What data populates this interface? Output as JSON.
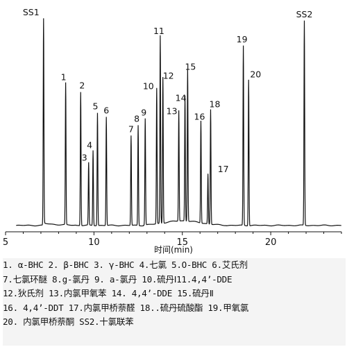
{
  "chart_data": {
    "type": "line",
    "title": "",
    "xlabel": "时间(min)",
    "ylabel": "",
    "xlim": [
      5,
      24
    ],
    "ylim": [
      0,
      100
    ],
    "xticks": [
      5,
      10,
      15,
      20
    ],
    "grid": false,
    "series": [
      {
        "peaks": [
          {
            "label": "SS1",
            "x": 7.15,
            "y": 99
          },
          {
            "label": "1",
            "x": 8.4,
            "y": 68
          },
          {
            "label": "2",
            "x": 9.25,
            "y": 64
          },
          {
            "label": "3",
            "x": 9.7,
            "y": 30
          },
          {
            "label": "4",
            "x": 9.95,
            "y": 36
          },
          {
            "label": "5",
            "x": 10.2,
            "y": 54
          },
          {
            "label": "6",
            "x": 10.7,
            "y": 52
          },
          {
            "label": "7",
            "x": 12.1,
            "y": 43
          },
          {
            "label": "8",
            "x": 12.5,
            "y": 48
          },
          {
            "label": "9",
            "x": 12.9,
            "y": 51
          },
          {
            "label": "10",
            "x": 13.55,
            "y": 65
          },
          {
            "label": "11",
            "x": 13.75,
            "y": 90
          },
          {
            "label": "12",
            "x": 13.9,
            "y": 70
          },
          {
            "label": "13",
            "x": 14.8,
            "y": 53
          },
          {
            "label": "14",
            "x": 15.15,
            "y": 60
          },
          {
            "label": "15",
            "x": 15.3,
            "y": 73
          },
          {
            "label": "16",
            "x": 16.05,
            "y": 49
          },
          {
            "label": "17",
            "x": 16.45,
            "y": 24
          },
          {
            "label": "18",
            "x": 16.6,
            "y": 55
          },
          {
            "label": "19",
            "x": 18.45,
            "y": 86
          },
          {
            "label": "20",
            "x": 18.75,
            "y": 70
          },
          {
            "label": "SS2",
            "x": 21.9,
            "y": 98
          }
        ]
      }
    ]
  },
  "legend": {
    "lines": [
      "1. α-BHC 2. β-BHC 3. γ-BHC 4.七氯 5.O-BHC 6.艾氏剂",
      "7.七氯环醚 8.g-氯丹 9. a-氯丹 10.硫丹Ⅰ11.4,4’-DDE",
      "12.狄氏剂 13.内氯甲氧苯 14. 4,4’-DDE 15.硫丹Ⅱ",
      "16. 4,4’-DDT 17.内氯甲桥萘醛 18..硫丹硫酸酯 19.甲氧氯",
      "20. 内氯甲桥萘酮  SS2.十氯联苯"
    ]
  }
}
